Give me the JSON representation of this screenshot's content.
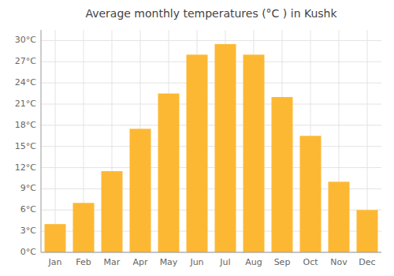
{
  "chart_data": {
    "type": "bar",
    "title": "Average monthly temperatures (°C ) in Kushk",
    "categories": [
      "Jan",
      "Feb",
      "Mar",
      "Apr",
      "May",
      "Jun",
      "Jul",
      "Aug",
      "Sep",
      "Oct",
      "Nov",
      "Dec"
    ],
    "values": [
      4,
      7,
      11.5,
      17.5,
      22.5,
      28,
      29.5,
      28,
      22,
      16.5,
      10,
      6
    ],
    "color": "#FDB833",
    "ylim": [
      0,
      31.5
    ],
    "yticks": [
      {
        "value": 0,
        "label": "0°C"
      },
      {
        "value": 3,
        "label": "3°C"
      },
      {
        "value": 6,
        "label": "6°C"
      },
      {
        "value": 9,
        "label": "9°C"
      },
      {
        "value": 12,
        "label": "12°C"
      },
      {
        "value": 15,
        "label": "15°C"
      },
      {
        "value": 18,
        "label": "18°C"
      },
      {
        "value": 21,
        "label": "21°C"
      },
      {
        "value": 24,
        "label": "24°C"
      },
      {
        "value": 27,
        "label": "27°C"
      },
      {
        "value": 30,
        "label": "30°C"
      }
    ],
    "grid": true
  }
}
